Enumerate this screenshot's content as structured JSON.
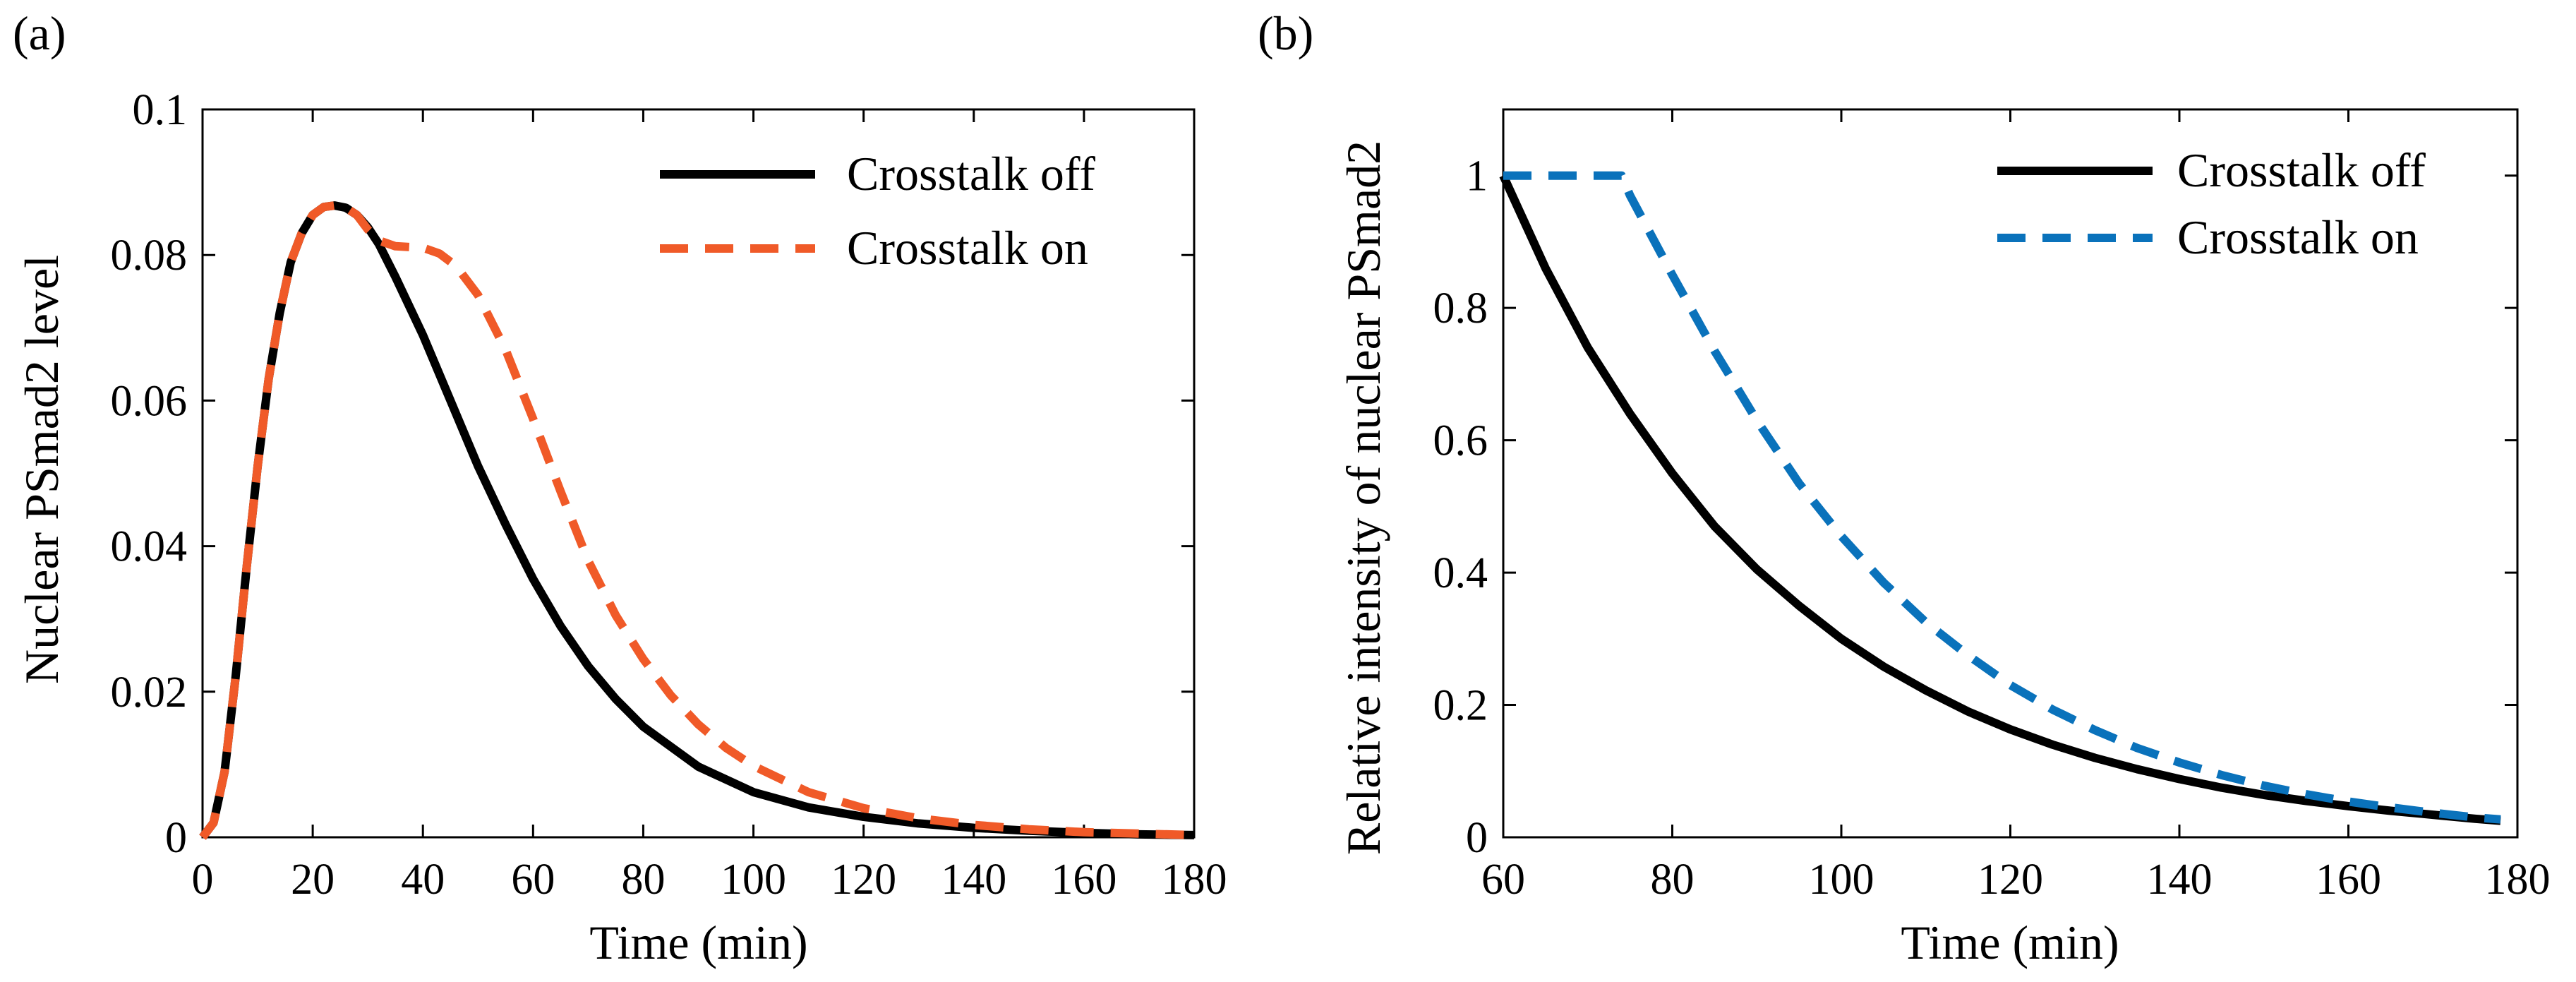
{
  "chart_data": [
    {
      "panel_label": "(a)",
      "type": "line",
      "xlabel": "Time (min)",
      "ylabel": "Nuclear PSmad2 level",
      "xlim": [
        0,
        180
      ],
      "ylim": [
        0,
        0.1
      ],
      "xticks": [
        "0",
        "20",
        "40",
        "60",
        "80",
        "100",
        "120",
        "140",
        "160",
        "180"
      ],
      "yticks": [
        "0",
        "0.02",
        "0.04",
        "0.06",
        "0.08",
        "0.1"
      ],
      "legend_position": "top-right",
      "series": [
        {
          "name": "Crosstalk off",
          "style": "solid",
          "color": "#000000",
          "x": [
            0,
            2,
            4,
            6,
            8,
            10,
            12,
            14,
            16,
            18,
            20,
            22,
            24,
            26,
            28,
            30,
            32,
            35,
            40,
            45,
            50,
            55,
            60,
            65,
            70,
            75,
            80,
            90,
            100,
            110,
            120,
            130,
            140,
            150,
            160,
            170,
            180
          ],
          "y": [
            0,
            0.002,
            0.009,
            0.022,
            0.037,
            0.051,
            0.063,
            0.072,
            0.079,
            0.083,
            0.0855,
            0.0866,
            0.0868,
            0.0865,
            0.0855,
            0.0838,
            0.0815,
            0.077,
            0.069,
            0.06,
            0.051,
            0.043,
            0.0355,
            0.029,
            0.0235,
            0.019,
            0.0152,
            0.0097,
            0.0062,
            0.0041,
            0.0028,
            0.0019,
            0.0013,
            0.0009,
            0.0006,
            0.0004,
            0.0003
          ]
        },
        {
          "name": "Crosstalk on",
          "style": "dashed",
          "color": "#f05a28",
          "x": [
            0,
            2,
            4,
            6,
            8,
            10,
            12,
            14,
            16,
            18,
            20,
            22,
            24,
            26,
            28,
            30,
            32,
            35,
            40,
            43,
            46,
            50,
            55,
            60,
            65,
            70,
            75,
            80,
            85,
            90,
            95,
            100,
            110,
            120,
            130,
            140,
            150,
            160,
            170,
            180
          ],
          "y": [
            0,
            0.002,
            0.009,
            0.022,
            0.037,
            0.051,
            0.063,
            0.072,
            0.079,
            0.083,
            0.0855,
            0.0866,
            0.0868,
            0.0865,
            0.0855,
            0.0835,
            0.082,
            0.0812,
            0.081,
            0.0802,
            0.0785,
            0.0745,
            0.067,
            0.0575,
            0.0475,
            0.038,
            0.0305,
            0.0245,
            0.0195,
            0.0155,
            0.0123,
            0.0098,
            0.0062,
            0.004,
            0.0026,
            0.0017,
            0.0011,
            0.0007,
            0.0005,
            0.0003
          ]
        }
      ]
    },
    {
      "panel_label": "(b)",
      "type": "line",
      "xlabel": "Time (min)",
      "ylabel": "Relative intensity of nuclear PSmad2",
      "xlim": [
        60,
        180
      ],
      "ylim": [
        0,
        1.1
      ],
      "xticks": [
        "60",
        "80",
        "100",
        "120",
        "140",
        "160",
        "180"
      ],
      "yticks": [
        "0",
        "0.2",
        "0.4",
        "0.6",
        "0.8",
        "1"
      ],
      "legend_position": "top-right",
      "series": [
        {
          "name": "Crosstalk off",
          "style": "solid",
          "color": "#000000",
          "x": [
            60,
            65,
            70,
            75,
            80,
            85,
            90,
            95,
            100,
            105,
            110,
            115,
            120,
            125,
            130,
            135,
            140,
            145,
            150,
            155,
            160,
            165,
            170,
            175,
            178
          ],
          "y": [
            1.0,
            0.86,
            0.74,
            0.64,
            0.55,
            0.47,
            0.405,
            0.35,
            0.3,
            0.258,
            0.222,
            0.19,
            0.163,
            0.14,
            0.12,
            0.103,
            0.088,
            0.075,
            0.064,
            0.055,
            0.047,
            0.04,
            0.034,
            0.028,
            0.025
          ]
        },
        {
          "name": "Crosstalk on",
          "style": "dashed",
          "color": "#0a72bb",
          "x": [
            60,
            65,
            70,
            74,
            75,
            80,
            85,
            90,
            95,
            100,
            105,
            110,
            115,
            120,
            125,
            130,
            135,
            140,
            145,
            150,
            155,
            160,
            165,
            170,
            175,
            178
          ],
          "y": [
            1.0,
            1.0,
            1.0,
            1.0,
            0.97,
            0.85,
            0.735,
            0.63,
            0.535,
            0.455,
            0.385,
            0.325,
            0.275,
            0.23,
            0.193,
            0.162,
            0.135,
            0.113,
            0.094,
            0.078,
            0.065,
            0.054,
            0.045,
            0.037,
            0.03,
            0.027
          ]
        }
      ]
    }
  ]
}
